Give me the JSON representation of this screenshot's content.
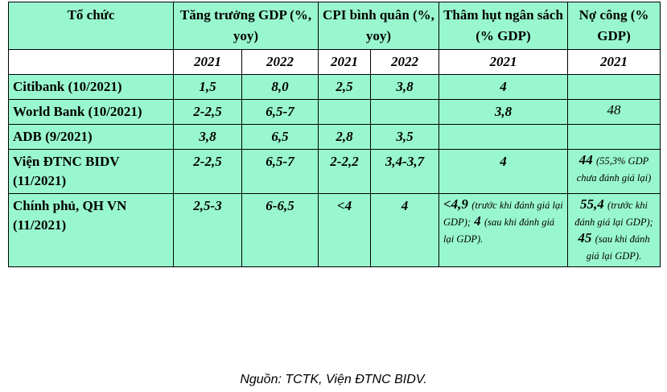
{
  "table": {
    "header": [
      [
        "Tổ chức",
        "Tăng trưởng GDP (%, yoy)",
        "CPI bình quân (%, yoy)",
        "Thâm hụt ngân sách (% GDP)",
        "Nợ công (% GDP)"
      ],
      [
        null,
        "2021",
        "2022",
        "2021",
        "2022",
        "2021",
        "2021"
      ]
    ],
    "rows": [
      [
        "Citibank (10/2021)",
        "1,5",
        "8,0",
        "2,5",
        "3,8",
        "4",
        null
      ],
      [
        "World Bank (10/2021)",
        "2-2,5",
        "6,5-7",
        null,
        null,
        "3,8",
        [
          {
            "text": "48",
            "bold": false
          }
        ]
      ],
      [
        "ADB (9/2021)",
        "3,8",
        "6,5",
        "2,8",
        "3,5",
        null,
        null
      ],
      [
        "Viện ĐTNC BIDV (11/2021)",
        "2-2,5",
        "6,5-7",
        "2-2,2",
        "3,4-3,7",
        "4",
        [
          {
            "text": "44",
            "bold": true
          },
          {
            "text": "(55,3% GDP chưa đánh giá lại)",
            "bold": false
          }
        ]
      ],
      [
        "Chính phủ, QH VN (11/2021)",
        "2,5-3",
        "6-6,5",
        "<4",
        "4",
        [
          {
            "text": "<4,9",
            "bold": true
          },
          {
            "text": "(trước khi đánh giá lại GDP);",
            "bold": false
          },
          {
            "text": "4",
            "bold": true
          },
          {
            "text": "(sau khi đánh giá lại GDP).",
            "bold": false
          }
        ],
        [
          {
            "text": "55,4",
            "bold": true
          },
          {
            "text": "(trước khi đánh giá lại GDP);",
            "bold": false
          },
          {
            "text": "45",
            "bold": true
          },
          {
            "text": "(sau khi đánh giá lại GDP).",
            "bold": false
          }
        ]
      ]
    ]
  },
  "source": "Nguồn: TCTK, Viện ĐTNC BIDV."
}
